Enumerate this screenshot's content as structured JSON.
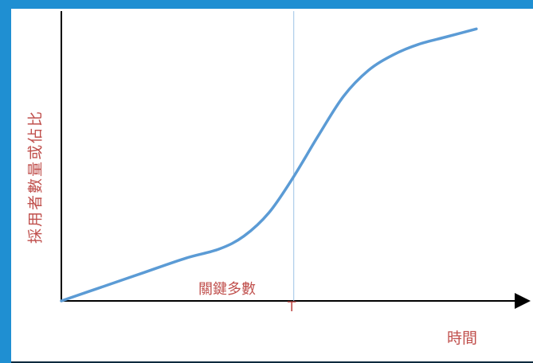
{
  "chart_data": {
    "type": "line",
    "title": "",
    "xlabel": "時間",
    "ylabel": "採用者數量或佔比",
    "marker_label": "T",
    "annotation": "關鍵多數",
    "series": [
      {
        "x": [
          0,
          0.1,
          0.2,
          0.3,
          0.38,
          0.44,
          0.5,
          0.56,
          0.62,
          0.68,
          0.74,
          0.8,
          0.86,
          0.93,
          1.0
        ],
        "values": [
          0,
          0.055,
          0.11,
          0.165,
          0.2,
          0.25,
          0.34,
          0.48,
          0.64,
          0.79,
          0.89,
          0.95,
          0.99,
          1.02,
          1.05
        ]
      }
    ],
    "marker_x": 0.56,
    "xlim": [
      0,
      1.1
    ],
    "ylim": [
      0,
      1.1
    ],
    "colors": {
      "line": "#5b9bd5",
      "marker_line": "#9dc3e6",
      "label_text": "#c0504d",
      "axis": "#000000",
      "frame": "#1f8fd2"
    }
  }
}
